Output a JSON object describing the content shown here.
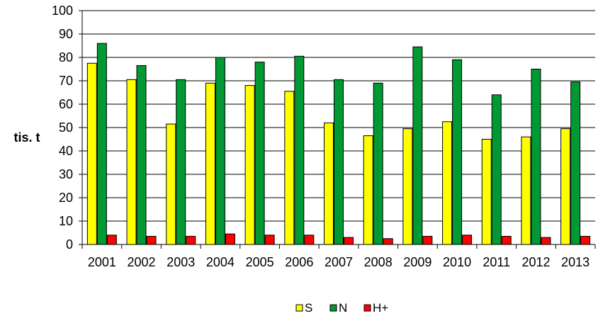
{
  "chart_data": {
    "type": "bar",
    "categories": [
      "2001",
      "2002",
      "2003",
      "2004",
      "2005",
      "2006",
      "2007",
      "2008",
      "2009",
      "2010",
      "2011",
      "2012",
      "2013"
    ],
    "series": [
      {
        "name": "S",
        "color": "#ffff00",
        "values": [
          77.5,
          70.5,
          51.5,
          69,
          68,
          65.5,
          52,
          46.5,
          49.5,
          52.5,
          45,
          46,
          49.5
        ]
      },
      {
        "name": "N",
        "color": "#009933",
        "values": [
          86,
          76.5,
          70.5,
          80,
          78,
          80.5,
          70.5,
          69,
          84.5,
          79,
          64,
          75,
          69.5
        ]
      },
      {
        "name": "H+",
        "color": "#ff0000",
        "values": [
          4,
          3.5,
          3.5,
          4.5,
          4,
          4,
          3,
          2.5,
          3.5,
          4,
          3.5,
          3,
          3.5
        ]
      }
    ],
    "ylabel": "tis. t",
    "xlabel": "",
    "ylim": [
      0,
      100
    ],
    "yticks": [
      0,
      10,
      20,
      30,
      40,
      50,
      60,
      70,
      80,
      90,
      100
    ],
    "grid": true,
    "legend_position": "bottom"
  }
}
